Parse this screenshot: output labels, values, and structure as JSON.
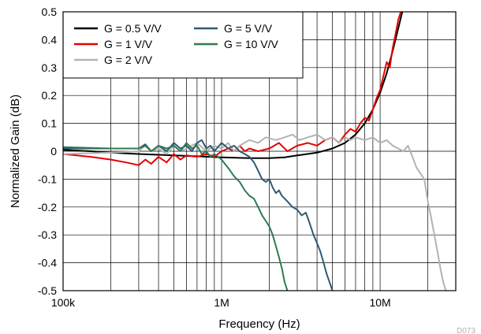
{
  "chart_data": {
    "type": "line",
    "xlabel": "Frequency (Hz)",
    "ylabel": "Normalized Gain (dB)",
    "x_scale": "log",
    "xlim": [
      100000,
      30000000
    ],
    "ylim": [
      -0.5,
      0.5
    ],
    "x_ticks": [
      {
        "value": 100000,
        "label": "100k"
      },
      {
        "value": 1000000,
        "label": "1M"
      },
      {
        "value": 10000000,
        "label": "10M"
      }
    ],
    "y_ticks": [
      {
        "value": 0.5,
        "label": "0.5"
      },
      {
        "value": 0.4,
        "label": "0.4"
      },
      {
        "value": 0.3,
        "label": "0.3"
      },
      {
        "value": 0.2,
        "label": "0.2"
      },
      {
        "value": 0.1,
        "label": "0.1"
      },
      {
        "value": 0,
        "label": "0"
      },
      {
        "value": -0.1,
        "label": "-0.1"
      },
      {
        "value": -0.2,
        "label": "-0.2"
      },
      {
        "value": -0.3,
        "label": "-0.3"
      },
      {
        "value": -0.4,
        "label": "-0.4"
      },
      {
        "value": -0.5,
        "label": "-0.5"
      }
    ],
    "grid": true,
    "legend_position": "top-left",
    "figure_id": "D073",
    "series": [
      {
        "name": "G = 0.5 V/V",
        "color": "#000000",
        "points": [
          [
            100000,
            0.005
          ],
          [
            150000,
            0.0
          ],
          [
            200000,
            -0.005
          ],
          [
            300000,
            -0.01
          ],
          [
            500000,
            -0.015
          ],
          [
            700000,
            -0.018
          ],
          [
            1000000,
            -0.022
          ],
          [
            1500000,
            -0.025
          ],
          [
            2000000,
            -0.025
          ],
          [
            2500000,
            -0.022
          ],
          [
            3000000,
            -0.015
          ],
          [
            4000000,
            -0.005
          ],
          [
            5000000,
            0.01
          ],
          [
            6000000,
            0.03
          ],
          [
            7000000,
            0.06
          ],
          [
            8000000,
            0.1
          ],
          [
            9000000,
            0.15
          ],
          [
            10000000,
            0.21
          ],
          [
            11000000,
            0.28
          ],
          [
            12000000,
            0.36
          ],
          [
            13000000,
            0.44
          ],
          [
            13800000,
            0.5
          ]
        ]
      },
      {
        "name": "G = 1 V/V",
        "color": "#e60000",
        "points": [
          [
            100000,
            -0.01
          ],
          [
            150000,
            -0.02
          ],
          [
            200000,
            -0.03
          ],
          [
            250000,
            -0.04
          ],
          [
            300000,
            -0.05
          ],
          [
            330000,
            -0.03
          ],
          [
            360000,
            -0.045
          ],
          [
            400000,
            -0.02
          ],
          [
            450000,
            -0.04
          ],
          [
            500000,
            -0.01
          ],
          [
            550000,
            -0.03
          ],
          [
            600000,
            -0.015
          ],
          [
            700000,
            -0.02
          ],
          [
            800000,
            -0.01
          ],
          [
            900000,
            -0.02
          ],
          [
            1000000,
            0.0
          ],
          [
            1100000,
            0.01
          ],
          [
            1200000,
            0.0
          ],
          [
            1300000,
            0.02
          ],
          [
            1400000,
            0.0
          ],
          [
            1500000,
            0.01
          ],
          [
            1700000,
            0.0
          ],
          [
            2000000,
            0.01
          ],
          [
            2300000,
            0.03
          ],
          [
            2600000,
            0.0
          ],
          [
            3000000,
            0.02
          ],
          [
            3500000,
            0.03
          ],
          [
            4000000,
            0.02
          ],
          [
            4500000,
            0.04
          ],
          [
            5000000,
            0.05
          ],
          [
            5500000,
            0.03
          ],
          [
            6000000,
            0.06
          ],
          [
            6500000,
            0.08
          ],
          [
            7000000,
            0.07
          ],
          [
            7500000,
            0.1
          ],
          [
            8000000,
            0.12
          ],
          [
            8500000,
            0.11
          ],
          [
            9000000,
            0.15
          ],
          [
            9500000,
            0.19
          ],
          [
            10000000,
            0.22
          ],
          [
            10500000,
            0.27
          ],
          [
            11000000,
            0.32
          ],
          [
            11500000,
            0.3
          ],
          [
            12000000,
            0.37
          ],
          [
            12500000,
            0.42
          ],
          [
            13000000,
            0.47
          ],
          [
            13500000,
            0.5
          ]
        ]
      },
      {
        "name": "G = 2 V/V",
        "color": "#b3b3b3",
        "points": [
          [
            100000,
            -0.01
          ],
          [
            200000,
            -0.005
          ],
          [
            300000,
            0.0
          ],
          [
            330000,
            0.02
          ],
          [
            360000,
            0.0
          ],
          [
            400000,
            0.01
          ],
          [
            450000,
            -0.01
          ],
          [
            500000,
            0.02
          ],
          [
            550000,
            0.0
          ],
          [
            600000,
            0.01
          ],
          [
            700000,
            0.03
          ],
          [
            800000,
            0.0
          ],
          [
            900000,
            0.02
          ],
          [
            1000000,
            0.01
          ],
          [
            1100000,
            0.03
          ],
          [
            1200000,
            0.0
          ],
          [
            1300000,
            0.02
          ],
          [
            1500000,
            0.04
          ],
          [
            1700000,
            0.03
          ],
          [
            1900000,
            0.05
          ],
          [
            2200000,
            0.04
          ],
          [
            2500000,
            0.05
          ],
          [
            2800000,
            0.06
          ],
          [
            3100000,
            0.04
          ],
          [
            3500000,
            0.05
          ],
          [
            4000000,
            0.06
          ],
          [
            4500000,
            0.04
          ],
          [
            5000000,
            0.05
          ],
          [
            5500000,
            0.03
          ],
          [
            6000000,
            0.05
          ],
          [
            6500000,
            0.04
          ],
          [
            7000000,
            0.05
          ],
          [
            8000000,
            0.04
          ],
          [
            9000000,
            0.05
          ],
          [
            10000000,
            0.03
          ],
          [
            11000000,
            0.04
          ],
          [
            12000000,
            0.02
          ],
          [
            14000000,
            0.0
          ],
          [
            15000000,
            0.02
          ],
          [
            16000000,
            -0.02
          ],
          [
            17000000,
            -0.06
          ],
          [
            18000000,
            -0.08
          ],
          [
            19000000,
            -0.1
          ],
          [
            20000000,
            -0.18
          ],
          [
            21000000,
            -0.24
          ],
          [
            22000000,
            -0.3
          ],
          [
            23000000,
            -0.36
          ],
          [
            24000000,
            -0.42
          ],
          [
            25000000,
            -0.47
          ],
          [
            26000000,
            -0.5
          ]
        ]
      },
      {
        "name": "G = 5 V/V",
        "color": "#2e5b73",
        "points": [
          [
            100000,
            0.01
          ],
          [
            200000,
            0.01
          ],
          [
            300000,
            0.01
          ],
          [
            330000,
            0.025
          ],
          [
            360000,
            0.0
          ],
          [
            400000,
            0.02
          ],
          [
            450000,
            0.0
          ],
          [
            500000,
            0.03
          ],
          [
            550000,
            0.01
          ],
          [
            600000,
            0.02
          ],
          [
            650000,
            0.0
          ],
          [
            700000,
            0.03
          ],
          [
            750000,
            0.04
          ],
          [
            800000,
            0.01
          ],
          [
            850000,
            0.02
          ],
          [
            900000,
            0.0
          ],
          [
            1000000,
            0.03
          ],
          [
            1100000,
            0.01
          ],
          [
            1200000,
            0.02
          ],
          [
            1300000,
            0.0
          ],
          [
            1400000,
            -0.01
          ],
          [
            1500000,
            -0.02
          ],
          [
            1600000,
            -0.04
          ],
          [
            1700000,
            -0.07
          ],
          [
            1800000,
            -0.1
          ],
          [
            1900000,
            -0.11
          ],
          [
            2000000,
            -0.1
          ],
          [
            2100000,
            -0.13
          ],
          [
            2200000,
            -0.15
          ],
          [
            2300000,
            -0.14
          ],
          [
            2400000,
            -0.16
          ],
          [
            2600000,
            -0.18
          ],
          [
            2800000,
            -0.2
          ],
          [
            3000000,
            -0.21
          ],
          [
            3200000,
            -0.23
          ],
          [
            3400000,
            -0.22
          ],
          [
            3600000,
            -0.26
          ],
          [
            3800000,
            -0.3
          ],
          [
            4000000,
            -0.33
          ],
          [
            4200000,
            -0.36
          ],
          [
            4400000,
            -0.4
          ],
          [
            4600000,
            -0.44
          ],
          [
            4800000,
            -0.47
          ],
          [
            5000000,
            -0.5
          ]
        ]
      },
      {
        "name": "G = 10 V/V",
        "color": "#2e7a4f",
        "points": [
          [
            100000,
            0.015
          ],
          [
            200000,
            0.01
          ],
          [
            300000,
            0.01
          ],
          [
            330000,
            0.02
          ],
          [
            360000,
            0.0
          ],
          [
            400000,
            0.02
          ],
          [
            450000,
            0.01
          ],
          [
            500000,
            0.02
          ],
          [
            550000,
            0.0
          ],
          [
            600000,
            0.03
          ],
          [
            650000,
            0.01
          ],
          [
            700000,
            0.02
          ],
          [
            750000,
            -0.01
          ],
          [
            800000,
            0.0
          ],
          [
            850000,
            -0.02
          ],
          [
            900000,
            -0.01
          ],
          [
            1000000,
            -0.03
          ],
          [
            1100000,
            -0.06
          ],
          [
            1200000,
            -0.09
          ],
          [
            1300000,
            -0.11
          ],
          [
            1400000,
            -0.14
          ],
          [
            1500000,
            -0.16
          ],
          [
            1600000,
            -0.17
          ],
          [
            1700000,
            -0.2
          ],
          [
            1800000,
            -0.23
          ],
          [
            1900000,
            -0.25
          ],
          [
            2000000,
            -0.27
          ],
          [
            2100000,
            -0.3
          ],
          [
            2200000,
            -0.34
          ],
          [
            2300000,
            -0.38
          ],
          [
            2400000,
            -0.42
          ],
          [
            2500000,
            -0.47
          ],
          [
            2600000,
            -0.5
          ]
        ]
      }
    ],
    "legend": {
      "columns": [
        [
          "G = 0.5 V/V",
          "G = 1 V/V",
          "G = 2 V/V"
        ],
        [
          "G = 5 V/V",
          "G = 10 V/V"
        ]
      ]
    }
  }
}
